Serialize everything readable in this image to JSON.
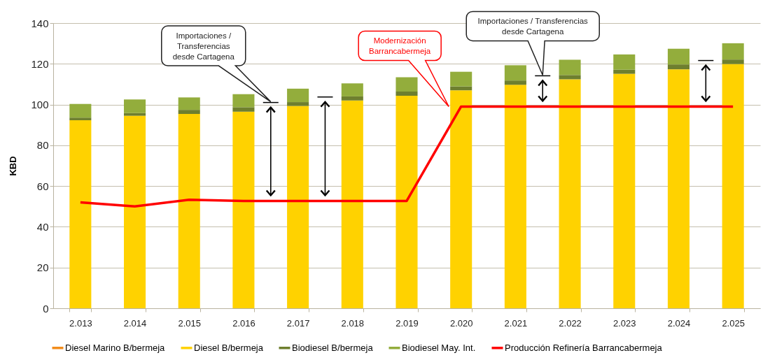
{
  "chart_data": {
    "type": "bar",
    "stacked": true,
    "ylabel": "KBD",
    "categories": [
      "2.013",
      "2.014",
      "2.015",
      "2.016",
      "2.017",
      "2.018",
      "2.019",
      "2.020",
      "2.021",
      "2.022",
      "2.023",
      "2.024",
      "2.025"
    ],
    "series": [
      {
        "name": "Diesel Marino B/bermeja",
        "color": "#f28c1c",
        "values": [
          0,
          0,
          0,
          0,
          0,
          0,
          0,
          0,
          0,
          0,
          0,
          0,
          0
        ]
      },
      {
        "name": "Diesel B/bermeja",
        "color": "#ffd200",
        "values": [
          92.3,
          94.5,
          95.4,
          96.5,
          99.3,
          102.0,
          104.3,
          107.0,
          109.7,
          112.4,
          115.1,
          117.3,
          119.9
        ]
      },
      {
        "name": "Biodiesel B/bermeja",
        "color": "#6e7f2e",
        "values": [
          1.3,
          1.3,
          2.0,
          2.2,
          1.9,
          2.0,
          2.1,
          1.9,
          2.1,
          2.1,
          2.0,
          2.4,
          2.2
        ]
      },
      {
        "name": "Biodiesel May. Int.",
        "color": "#93ad3c",
        "values": [
          6.7,
          6.7,
          6.1,
          6.4,
          6.6,
          6.4,
          7.0,
          7.2,
          7.5,
          7.5,
          7.5,
          7.7,
          8.0
        ]
      },
      {
        "name": "Producción Refinería Barrancabermeja",
        "type": "line",
        "color": "#ff0000",
        "values": [
          52,
          50,
          53.3,
          52.7,
          52.7,
          52.7,
          52.7,
          99,
          99,
          99,
          99,
          99,
          99
        ]
      }
    ],
    "ylim": [
      0,
      140
    ],
    "yticks": [
      0,
      20,
      40,
      60,
      80,
      100,
      120,
      140
    ],
    "grid": "y",
    "legend": "bottom",
    "marker": "none",
    "annotations": [
      "Importaciones / Transferencias desde Cartagena",
      "Modernización Barrancabermeja",
      "Importaciones / Transferencias desde Cartagena"
    ]
  }
}
